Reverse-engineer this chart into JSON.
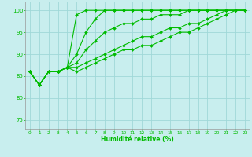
{
  "xlabel": "Humidité relative (%)",
  "xlim": [
    -0.5,
    23.5
  ],
  "ylim": [
    73,
    102
  ],
  "yticks": [
    75,
    80,
    85,
    90,
    95,
    100
  ],
  "xticks": [
    0,
    1,
    2,
    3,
    4,
    5,
    6,
    7,
    8,
    9,
    10,
    11,
    12,
    13,
    14,
    15,
    16,
    17,
    18,
    19,
    20,
    21,
    22,
    23
  ],
  "bg_color": "#c8eeee",
  "grid_color": "#a0d8d8",
  "line_color": "#00bb00",
  "series": [
    [
      86,
      83,
      86,
      86,
      87,
      99,
      100,
      100,
      100,
      100,
      100,
      100,
      100,
      100,
      100,
      100,
      100,
      100,
      100,
      100,
      100,
      100,
      100,
      100
    ],
    [
      86,
      83,
      86,
      86,
      87,
      90,
      95,
      98,
      100,
      100,
      100,
      100,
      100,
      100,
      100,
      100,
      100,
      100,
      100,
      100,
      100,
      100,
      100,
      100
    ],
    [
      86,
      83,
      86,
      86,
      87,
      88,
      91,
      93,
      95,
      96,
      97,
      97,
      98,
      98,
      99,
      99,
      99,
      100,
      100,
      100,
      100,
      100,
      100,
      100
    ],
    [
      86,
      83,
      86,
      86,
      87,
      87,
      88,
      89,
      90,
      91,
      92,
      93,
      94,
      94,
      95,
      96,
      96,
      97,
      97,
      98,
      99,
      100,
      100,
      100
    ],
    [
      86,
      83,
      86,
      86,
      87,
      86,
      87,
      88,
      89,
      90,
      91,
      91,
      92,
      92,
      93,
      94,
      95,
      95,
      96,
      97,
      98,
      99,
      100,
      100
    ]
  ],
  "marker": "D",
  "marker_size": 2.0,
  "linewidth": 0.8
}
